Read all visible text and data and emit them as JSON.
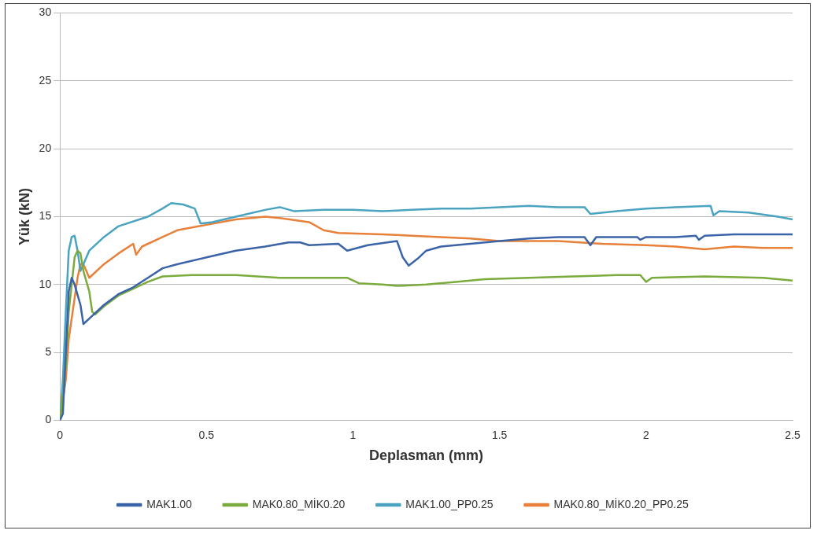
{
  "chart_data": {
    "type": "line",
    "xlabel": "Deplasman (mm)",
    "ylabel": "Yük (kN)",
    "xlim": [
      0,
      2.5
    ],
    "xticks": [
      0,
      0.5,
      1,
      1.5,
      2,
      2.5
    ],
    "ylim": [
      0,
      30
    ],
    "yticks": [
      0,
      5,
      10,
      15,
      20,
      25,
      30
    ],
    "grid": "y",
    "legend": "bottom",
    "marker": "none",
    "line_style": "solid",
    "series": [
      {
        "name": "MAK1.00",
        "color": "#3a63a8",
        "x": [
          0,
          0.01,
          0.02,
          0.03,
          0.04,
          0.05,
          0.07,
          0.08,
          0.1,
          0.15,
          0.2,
          0.25,
          0.3,
          0.35,
          0.4,
          0.5,
          0.6,
          0.7,
          0.78,
          0.82,
          0.85,
          0.95,
          0.98,
          1.05,
          1.15,
          1.17,
          1.19,
          1.22,
          1.25,
          1.3,
          1.4,
          1.5,
          1.6,
          1.7,
          1.79,
          1.81,
          1.83,
          1.9,
          1.97,
          1.98,
          2.0,
          2.1,
          2.17,
          2.18,
          2.2,
          2.3,
          2.5
        ],
        "values": [
          0,
          0.5,
          5,
          9.5,
          10.5,
          10,
          8.5,
          7.1,
          7.5,
          8.5,
          9.3,
          9.8,
          10.5,
          11.2,
          11.5,
          12,
          12.5,
          12.8,
          13.1,
          13.1,
          12.9,
          13,
          12.5,
          12.9,
          13.2,
          12,
          11.4,
          11.9,
          12.5,
          12.8,
          13,
          13.2,
          13.4,
          13.5,
          13.5,
          12.9,
          13.5,
          13.5,
          13.5,
          13.3,
          13.5,
          13.5,
          13.6,
          13.3,
          13.6,
          13.7,
          13.7
        ]
      },
      {
        "name": "MAK0.80_MİK0.20",
        "color": "#7aab3c",
        "x": [
          0,
          0.02,
          0.03,
          0.05,
          0.06,
          0.07,
          0.08,
          0.1,
          0.11,
          0.12,
          0.15,
          0.2,
          0.25,
          0.3,
          0.35,
          0.45,
          0.6,
          0.75,
          0.9,
          0.98,
          1.02,
          1.1,
          1.15,
          1.25,
          1.35,
          1.45,
          1.6,
          1.75,
          1.9,
          1.98,
          2.0,
          2.02,
          2.2,
          2.4,
          2.5
        ],
        "values": [
          0,
          4,
          8,
          12,
          12.5,
          12.3,
          11,
          9.5,
          8,
          7.8,
          8.4,
          9.2,
          9.7,
          10.2,
          10.6,
          10.7,
          10.7,
          10.5,
          10.5,
          10.5,
          10.1,
          10,
          9.9,
          10,
          10.2,
          10.4,
          10.5,
          10.6,
          10.7,
          10.7,
          10.2,
          10.5,
          10.6,
          10.5,
          10.3
        ]
      },
      {
        "name": "MAK1.00_PP0.25",
        "color": "#4aa3c0",
        "x": [
          0,
          0.01,
          0.02,
          0.03,
          0.04,
          0.05,
          0.06,
          0.07,
          0.08,
          0.1,
          0.15,
          0.2,
          0.3,
          0.35,
          0.38,
          0.42,
          0.46,
          0.48,
          0.52,
          0.6,
          0.7,
          0.75,
          0.8,
          0.9,
          1.0,
          1.1,
          1.2,
          1.3,
          1.4,
          1.5,
          1.6,
          1.7,
          1.79,
          1.81,
          1.9,
          2.0,
          2.1,
          2.22,
          2.23,
          2.25,
          2.35,
          2.45,
          2.5
        ],
        "values": [
          0,
          3,
          8,
          12.5,
          13.5,
          13.6,
          12.5,
          11,
          11.5,
          12.5,
          13.5,
          14.3,
          15,
          15.6,
          16,
          15.9,
          15.6,
          14.5,
          14.6,
          15,
          15.5,
          15.7,
          15.4,
          15.5,
          15.5,
          15.4,
          15.5,
          15.6,
          15.6,
          15.7,
          15.8,
          15.7,
          15.7,
          15.2,
          15.4,
          15.6,
          15.7,
          15.8,
          15.1,
          15.4,
          15.3,
          15,
          14.8
        ]
      },
      {
        "name": "MAK0.80_MİK0.20_PP0.25",
        "color": "#e8803a",
        "x": [
          0,
          0.02,
          0.03,
          0.05,
          0.06,
          0.07,
          0.08,
          0.09,
          0.1,
          0.15,
          0.2,
          0.25,
          0.26,
          0.28,
          0.35,
          0.4,
          0.5,
          0.6,
          0.7,
          0.75,
          0.85,
          0.9,
          0.95,
          1.1,
          1.2,
          1.4,
          1.5,
          1.7,
          1.85,
          2.0,
          2.1,
          2.2,
          2.3,
          2.4,
          2.5
        ],
        "values": [
          0,
          3,
          6,
          9,
          10.5,
          11.5,
          11.5,
          11,
          10.5,
          11.5,
          12.3,
          13,
          12.2,
          12.8,
          13.5,
          14,
          14.4,
          14.8,
          15,
          14.9,
          14.6,
          14,
          13.8,
          13.7,
          13.6,
          13.4,
          13.2,
          13.2,
          13,
          12.9,
          12.8,
          12.6,
          12.8,
          12.7,
          12.7
        ]
      }
    ]
  }
}
